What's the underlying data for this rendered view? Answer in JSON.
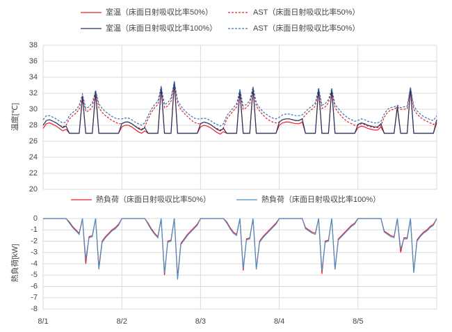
{
  "chart_data": [
    {
      "type": "line",
      "ylabel": "温度[℃]",
      "legend": "top",
      "grid": true,
      "xlim": [
        0,
        120
      ],
      "ylim": [
        20,
        38
      ],
      "yticks": [
        20,
        22,
        24,
        26,
        28,
        30,
        32,
        34,
        36,
        38
      ],
      "x": [
        0,
        1,
        2,
        3,
        4,
        5,
        6,
        7,
        8,
        9,
        10,
        11,
        12,
        13,
        14,
        15,
        16,
        17,
        18,
        19,
        20,
        21,
        22,
        23,
        24,
        25,
        26,
        27,
        28,
        29,
        30,
        31,
        32,
        33,
        34,
        35,
        36,
        37,
        38,
        39,
        40,
        41,
        42,
        43,
        44,
        45,
        46,
        47,
        48,
        49,
        50,
        51,
        52,
        53,
        54,
        55,
        56,
        57,
        58,
        59,
        60,
        61,
        62,
        63,
        64,
        65,
        66,
        67,
        68,
        69,
        70,
        71,
        72,
        73,
        74,
        75,
        76,
        77,
        78,
        79,
        80,
        81,
        82,
        83,
        84,
        85,
        86,
        87,
        88,
        89,
        90,
        91,
        92,
        93,
        94,
        95,
        96,
        97,
        98,
        99,
        100,
        101,
        102,
        103,
        104,
        105,
        106,
        107,
        108,
        109,
        110,
        111,
        112,
        113,
        114,
        115,
        116,
        117,
        118,
        119,
        120
      ],
      "series": [
        {
          "name": "室温（床面日射吸収比率50%）",
          "color": "#e8202a",
          "dash": false,
          "values": [
            27.6,
            28.2,
            28.3,
            28.1,
            27.9,
            27.6,
            27.3,
            27.5,
            27,
            27,
            27,
            27,
            31.5,
            27,
            27,
            27,
            32.0,
            27,
            27,
            27,
            27,
            27,
            27,
            27,
            27.8,
            28.0,
            28.0,
            27.8,
            27.5,
            27.2,
            27.0,
            27.3,
            27,
            27,
            27,
            27,
            32.6,
            27,
            27,
            27,
            33.3,
            27,
            27,
            27,
            27,
            27,
            27,
            27,
            27.8,
            28.0,
            27.9,
            27.7,
            27.4,
            27.1,
            26.9,
            27.2,
            27,
            27,
            27,
            27,
            32.2,
            27,
            27,
            27,
            32.6,
            27,
            27,
            27,
            27,
            27,
            27,
            27,
            28.0,
            28.3,
            28.4,
            28.4,
            28.3,
            28.2,
            28.2,
            28.4,
            27,
            27,
            27,
            27,
            32.5,
            27,
            27,
            27,
            32.4,
            27,
            27,
            27,
            27,
            27,
            27,
            27,
            27.7,
            27.9,
            27.8,
            27.6,
            27.5,
            27.4,
            27.4,
            27.8,
            27,
            27,
            27,
            27,
            30.2,
            27,
            27,
            27,
            32.5,
            27,
            27,
            27,
            27,
            27,
            27,
            27,
            28.3
          ]
        },
        {
          "name": "AST（床面日射吸収比率50%）",
          "color": "#e8202a",
          "dash": true,
          "values": [
            28.0,
            28.6,
            28.7,
            28.5,
            28.3,
            28.0,
            27.8,
            28.0,
            28.8,
            29.2,
            29.5,
            30.0,
            31.7,
            29.7,
            29.8,
            30.3,
            32.2,
            30.2,
            29.6,
            29.2,
            28.9,
            28.6,
            28.4,
            28.2,
            28.2,
            28.4,
            28.4,
            28.2,
            27.9,
            27.7,
            27.5,
            27.8,
            28.8,
            29.6,
            30.2,
            30.6,
            32.7,
            30.2,
            30.4,
            31.0,
            33.3,
            30.7,
            30.0,
            29.5,
            29.1,
            28.7,
            28.4,
            28.2,
            28.2,
            28.4,
            28.3,
            28.1,
            27.8,
            27.6,
            27.4,
            27.7,
            28.8,
            29.3,
            29.8,
            30.3,
            32.3,
            30.0,
            30.2,
            30.7,
            32.6,
            30.4,
            29.8,
            29.3,
            28.9,
            28.6,
            28.4,
            28.3,
            28.4,
            28.7,
            28.8,
            28.8,
            28.7,
            28.6,
            28.6,
            28.8,
            29.3,
            29.7,
            30.0,
            30.4,
            32.5,
            30.1,
            30.3,
            30.8,
            32.4,
            30.2,
            29.6,
            29.1,
            28.7,
            28.4,
            28.2,
            28.0,
            28.0,
            28.2,
            28.1,
            27.9,
            27.8,
            27.7,
            27.7,
            28.0,
            29.0,
            29.6,
            29.9,
            30.0,
            30.3,
            30.0,
            30.0,
            30.1,
            32.6,
            30.0,
            29.4,
            29.0,
            28.7,
            28.5,
            28.3,
            28.1,
            28.5
          ]
        },
        {
          "name": "室温（床面日射吸収比率100%）",
          "color": "#203864",
          "dash": false,
          "values": [
            28.0,
            28.6,
            28.7,
            28.5,
            28.3,
            28.0,
            27.7,
            27.9,
            27,
            27,
            27,
            27,
            31.6,
            27,
            27,
            27,
            32.3,
            27,
            27,
            27,
            27,
            27,
            27,
            27,
            28.2,
            28.4,
            28.4,
            28.2,
            27.9,
            27.6,
            27.4,
            27.7,
            27,
            27,
            27,
            27,
            32.8,
            27,
            27,
            27,
            33.5,
            27,
            27,
            27,
            27,
            27,
            27,
            27,
            28.2,
            28.4,
            28.3,
            28.1,
            27.8,
            27.5,
            27.3,
            27.6,
            27,
            27,
            27,
            27,
            32.4,
            27,
            27,
            27,
            32.8,
            27,
            27,
            27,
            27,
            27,
            27,
            27,
            28.4,
            28.7,
            28.8,
            28.8,
            28.7,
            28.6,
            28.6,
            28.8,
            27,
            27,
            27,
            27,
            32.6,
            27,
            27,
            27,
            32.6,
            27,
            27,
            27,
            27,
            27,
            27,
            27,
            28.1,
            28.3,
            28.2,
            28.0,
            27.9,
            27.8,
            27.8,
            28.2,
            27,
            27,
            27,
            27,
            30.4,
            27,
            27,
            27,
            32.7,
            27,
            27,
            27,
            27,
            27,
            27,
            27,
            28.7
          ]
        },
        {
          "name": "AST（床面日射吸収比率50%）",
          "color": "#2e75b6",
          "dash": true,
          "values": [
            28.7,
            29.2,
            29.2,
            29.0,
            28.8,
            28.5,
            28.3,
            28.4,
            29.2,
            29.6,
            29.9,
            30.5,
            31.9,
            30.1,
            30.3,
            30.8,
            32.4,
            30.7,
            30.1,
            29.7,
            29.4,
            29.1,
            28.9,
            28.8,
            28.8,
            28.9,
            28.9,
            28.7,
            28.4,
            28.2,
            28.0,
            28.3,
            29.2,
            30.0,
            30.6,
            31.0,
            32.9,
            30.6,
            30.8,
            31.4,
            33.5,
            31.1,
            30.4,
            29.9,
            29.5,
            29.2,
            28.9,
            28.8,
            28.8,
            28.9,
            28.8,
            28.6,
            28.3,
            28.1,
            27.9,
            28.2,
            29.2,
            29.7,
            30.2,
            30.7,
            32.5,
            30.4,
            30.6,
            31.1,
            32.8,
            30.8,
            30.2,
            29.7,
            29.4,
            29.1,
            28.9,
            28.8,
            29.0,
            29.3,
            29.4,
            29.4,
            29.3,
            29.2,
            29.2,
            29.3,
            29.7,
            30.1,
            30.4,
            30.8,
            32.7,
            30.5,
            30.7,
            31.2,
            32.6,
            30.6,
            30.1,
            29.6,
            29.2,
            28.9,
            28.7,
            28.5,
            28.6,
            28.8,
            28.7,
            28.5,
            28.4,
            28.3,
            28.3,
            28.5,
            29.4,
            30.0,
            30.2,
            30.3,
            30.5,
            30.2,
            30.3,
            30.4,
            32.8,
            30.4,
            29.8,
            29.4,
            29.1,
            28.9,
            28.7,
            28.6,
            29.2
          ]
        }
      ]
    },
    {
      "type": "line",
      "ylabel": "熱負荷[kW]",
      "legend": "top",
      "grid": true,
      "xlim": [
        0,
        120
      ],
      "ylim": [
        -8,
        0
      ],
      "yticks": [
        0,
        -1,
        -2,
        -3,
        -4,
        -5,
        -6,
        -7,
        -8
      ],
      "xticks": [
        {
          "value": 0,
          "label": "8/1"
        },
        {
          "value": 24,
          "label": "8/2"
        },
        {
          "value": 48,
          "label": "8/3"
        },
        {
          "value": 72,
          "label": "8/4"
        },
        {
          "value": 96,
          "label": "8/5"
        }
      ],
      "x": [
        0,
        1,
        2,
        3,
        4,
        5,
        6,
        7,
        8,
        9,
        10,
        11,
        12,
        13,
        14,
        15,
        16,
        17,
        18,
        19,
        20,
        21,
        22,
        23,
        24,
        25,
        26,
        27,
        28,
        29,
        30,
        31,
        32,
        33,
        34,
        35,
        36,
        37,
        38,
        39,
        40,
        41,
        42,
        43,
        44,
        45,
        46,
        47,
        48,
        49,
        50,
        51,
        52,
        53,
        54,
        55,
        56,
        57,
        58,
        59,
        60,
        61,
        62,
        63,
        64,
        65,
        66,
        67,
        68,
        69,
        70,
        71,
        72,
        73,
        74,
        75,
        76,
        77,
        78,
        79,
        80,
        81,
        82,
        83,
        84,
        85,
        86,
        87,
        88,
        89,
        90,
        91,
        92,
        93,
        94,
        95,
        96,
        97,
        98,
        99,
        100,
        101,
        102,
        103,
        104,
        105,
        106,
        107,
        108,
        109,
        110,
        111,
        112,
        113,
        114,
        115,
        116,
        117,
        118,
        119,
        120
      ],
      "series": [
        {
          "name": "熱負荷（床面日射吸収比率50%）",
          "color": "#e8202a",
          "dash": false,
          "values": [
            0,
            0,
            0,
            0,
            0,
            0,
            0,
            0,
            -0.3,
            -0.7,
            -1.0,
            -1.3,
            0,
            -4.0,
            -1.6,
            -1.5,
            0,
            -4.3,
            -2.0,
            -1.6,
            -1.3,
            -1.0,
            -0.8,
            -0.5,
            0,
            0,
            0,
            0,
            0,
            0,
            0,
            0,
            -0.4,
            -0.9,
            -1.3,
            -1.6,
            0,
            -5.0,
            -2.0,
            -1.9,
            0,
            -5.2,
            -2.2,
            -1.8,
            -1.4,
            -1.1,
            -0.8,
            -0.5,
            0,
            0,
            0,
            0,
            0,
            0,
            0,
            0,
            -0.3,
            -0.8,
            -1.2,
            -1.4,
            0,
            -4.6,
            -1.8,
            -1.7,
            0,
            -4.4,
            -2.0,
            -1.6,
            -1.3,
            -1.0,
            -0.7,
            -0.4,
            0,
            0,
            0,
            0,
            0,
            0,
            0,
            0,
            -0.8,
            -1.0,
            -1.2,
            -1.3,
            0,
            -4.9,
            -2.0,
            -1.9,
            0,
            -4.5,
            -1.8,
            -1.5,
            -1.2,
            -0.9,
            -0.6,
            -0.4,
            0,
            0,
            0,
            0,
            0,
            0,
            0,
            0,
            -1.1,
            -1.3,
            -1.5,
            -1.6,
            0,
            -3.0,
            -1.7,
            -1.7,
            0,
            -4.7,
            -1.9,
            -1.5,
            -1.2,
            -1.0,
            -0.7,
            -0.5,
            0
          ]
        },
        {
          "name": "熱負荷（床面日射吸収比率100%）",
          "color": "#4a90c8",
          "dash": false,
          "values": [
            0,
            0,
            0,
            0,
            0,
            0,
            0,
            0,
            -0.4,
            -0.8,
            -1.1,
            -1.4,
            0,
            -3.6,
            -1.7,
            -1.6,
            0,
            -4.5,
            -2.1,
            -1.7,
            -1.4,
            -1.1,
            -0.9,
            -0.6,
            0,
            0,
            0,
            0,
            0,
            0,
            0,
            0,
            -0.5,
            -1.0,
            -1.4,
            -1.7,
            0,
            -4.8,
            -2.1,
            -2.0,
            0,
            -5.4,
            -2.3,
            -1.9,
            -1.5,
            -1.2,
            -0.9,
            -0.6,
            0,
            0,
            0,
            0,
            0,
            0,
            0,
            0,
            -0.4,
            -0.9,
            -1.3,
            -1.5,
            0,
            -4.4,
            -1.9,
            -1.8,
            0,
            -4.5,
            -2.1,
            -1.7,
            -1.4,
            -1.1,
            -0.8,
            -0.5,
            0,
            0,
            0,
            0,
            0,
            0,
            0,
            0,
            -0.9,
            -1.1,
            -1.3,
            -1.4,
            0,
            -4.6,
            -2.1,
            -2.0,
            0,
            -4.5,
            -1.9,
            -1.6,
            -1.3,
            -1.0,
            -0.7,
            -0.5,
            0,
            0,
            0,
            0,
            0,
            0,
            0,
            0,
            -1.2,
            -1.4,
            -1.6,
            -1.7,
            0,
            -2.7,
            -1.8,
            -1.8,
            0,
            -4.8,
            -2.0,
            -1.6,
            -1.3,
            -1.1,
            -0.8,
            -0.6,
            0
          ]
        }
      ]
    }
  ]
}
